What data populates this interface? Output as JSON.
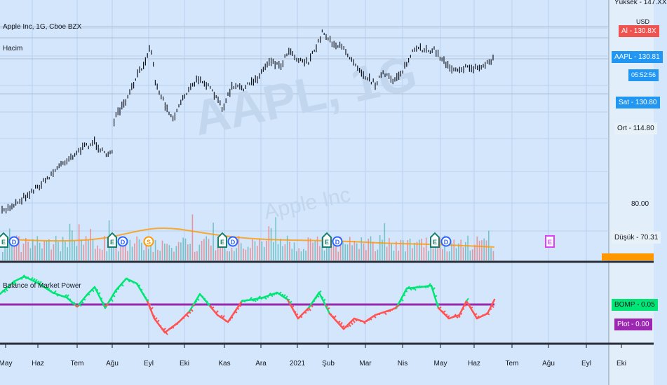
{
  "symbol_title": "Apple Inc, 1G, Cboe BZX",
  "volume_title": "Hacim",
  "indicator_title": "Balance of Market Power",
  "watermark_symbol": "AAPL, 1G",
  "watermark_name": "Apple Inc",
  "currency": "USD",
  "price_axis": {
    "ticks": [
      "80.00"
    ],
    "scale_label_high": "Yüksek",
    "high_value": "147.XX",
    "ask_label": "Al",
    "ask_value": "130.8X",
    "last_label": "AAPL",
    "last_value": "130.81",
    "countdown": "05:52:56",
    "bid_label": "Sat",
    "bid_value": "130.80",
    "avg_label": "Ort",
    "avg_value": "114.80",
    "scale_label_low": "Düşük",
    "low_value": "70.31"
  },
  "indicator_axis": {
    "bomp_label": "BOMP",
    "bomp_value": "0.05",
    "plot_label": "Plot",
    "plot_value": "0.00"
  },
  "time_axis": [
    "May",
    "Haz",
    "Tem",
    "Ağu",
    "Eyl",
    "Eki",
    "Kas",
    "Ara",
    "2021",
    "Şub",
    "Mar",
    "Nis",
    "May",
    "Haz",
    "Tem",
    "Ağu",
    "Eyl",
    "Eki"
  ],
  "event_markers": [
    "E",
    "D",
    "S"
  ],
  "colors": {
    "background": "#d4e6fb",
    "bar": "#131722",
    "ask": "#ef5350",
    "last": "#2196f3",
    "bid": "#2196f3",
    "bomp_positive": "#00e676",
    "bomp_negative": "#ff5252",
    "zero_line": "#9c27b0",
    "volume_up": "#26a69a",
    "volume_down": "#ef5350",
    "volume_ma": "#ff9800"
  }
}
